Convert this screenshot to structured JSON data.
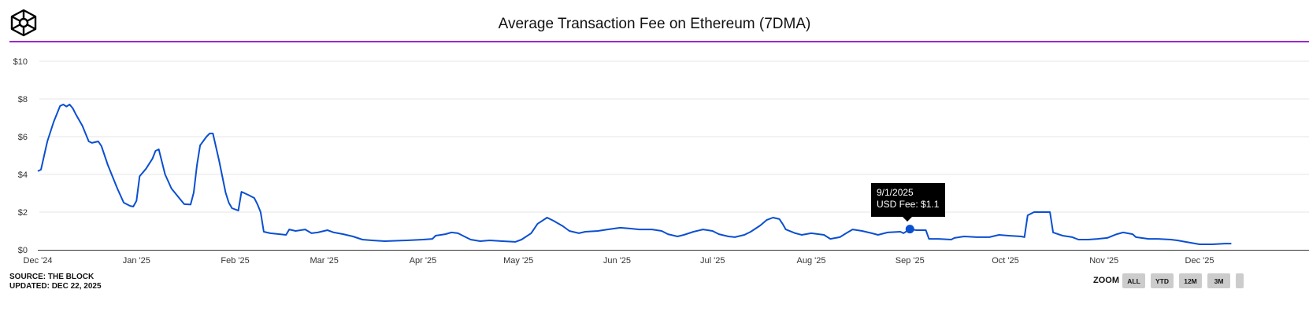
{
  "header": {
    "title": "Average Transaction Fee on Ethereum (7DMA)",
    "logo": "the-block-cube-logo"
  },
  "footer": {
    "source": "SOURCE: THE BLOCK",
    "updated": "UPDATED: DEC 22, 2025"
  },
  "zoom": {
    "label": "ZOOM",
    "buttons": [
      "ALL",
      "YTD",
      "12M",
      "3M"
    ]
  },
  "tooltip": {
    "date": "9/1/2025",
    "text": "USD Fee: $1.1"
  },
  "colors": {
    "line": "#0a4fd1",
    "accent": "#9c27d0",
    "grid": "#e6e6e6"
  },
  "chart_data": {
    "type": "line",
    "title": "Average Transaction Fee on Ethereum (7DMA)",
    "xlabel": "",
    "ylabel": "",
    "ylim": [
      0,
      10
    ],
    "grid": true,
    "yticks": [
      "$0",
      "$2",
      "$4",
      "$6",
      "$8",
      "$10"
    ],
    "xticks": [
      "Dec '24",
      "Jan '25",
      "Feb '25",
      "Mar '25",
      "Apr '25",
      "May '25",
      "Jun '25",
      "Jul '25",
      "Aug '25",
      "Sep '25",
      "Oct '25",
      "Nov '25",
      "Dec '25"
    ],
    "series": [
      {
        "name": "USD Fee",
        "points": [
          [
            "2024-12-01",
            4.17
          ],
          [
            "2024-12-02",
            4.25
          ],
          [
            "2024-12-04",
            5.75
          ],
          [
            "2024-12-06",
            6.79
          ],
          [
            "2024-12-08",
            7.63
          ],
          [
            "2024-12-09",
            7.71
          ],
          [
            "2024-12-10",
            7.6
          ],
          [
            "2024-12-11",
            7.71
          ],
          [
            "2024-12-12",
            7.5
          ],
          [
            "2024-12-13",
            7.17
          ],
          [
            "2024-12-15",
            6.58
          ],
          [
            "2024-12-17",
            5.75
          ],
          [
            "2024-12-18",
            5.67
          ],
          [
            "2024-12-20",
            5.75
          ],
          [
            "2024-12-21",
            5.5
          ],
          [
            "2024-12-23",
            4.5
          ],
          [
            "2024-12-26",
            3.25
          ],
          [
            "2024-12-28",
            2.5
          ],
          [
            "2024-12-30",
            2.33
          ],
          [
            "2024-12-31",
            2.29
          ],
          [
            "2025-01-01",
            2.6
          ],
          [
            "2025-01-02",
            3.9
          ],
          [
            "2025-01-04",
            4.3
          ],
          [
            "2025-01-06",
            4.83
          ],
          [
            "2025-01-07",
            5.25
          ],
          [
            "2025-01-08",
            5.33
          ],
          [
            "2025-01-10",
            4.0
          ],
          [
            "2025-01-12",
            3.25
          ],
          [
            "2025-01-15",
            2.63
          ],
          [
            "2025-01-16",
            2.42
          ],
          [
            "2025-01-18",
            2.4
          ],
          [
            "2025-01-19",
            3.04
          ],
          [
            "2025-01-20",
            4.5
          ],
          [
            "2025-01-21",
            5.54
          ],
          [
            "2025-01-23",
            6.0
          ],
          [
            "2025-01-24",
            6.17
          ],
          [
            "2025-01-25",
            6.17
          ],
          [
            "2025-01-27",
            4.71
          ],
          [
            "2025-01-29",
            3.04
          ],
          [
            "2025-01-30",
            2.5
          ],
          [
            "2025-01-31",
            2.21
          ],
          [
            "2025-02-02",
            2.08
          ],
          [
            "2025-02-03",
            3.08
          ],
          [
            "2025-02-05",
            2.92
          ],
          [
            "2025-02-07",
            2.75
          ],
          [
            "2025-02-08",
            2.42
          ],
          [
            "2025-02-09",
            2.0
          ],
          [
            "2025-02-10",
            0.96
          ],
          [
            "2025-02-12",
            0.88
          ],
          [
            "2025-02-15",
            0.83
          ],
          [
            "2025-02-17",
            0.79
          ],
          [
            "2025-02-18",
            1.08
          ],
          [
            "2025-02-20",
            1.0
          ],
          [
            "2025-02-23",
            1.08
          ],
          [
            "2025-02-25",
            0.88
          ],
          [
            "2025-02-27",
            0.92
          ],
          [
            "2025-03-02",
            1.04
          ],
          [
            "2025-03-04",
            0.92
          ],
          [
            "2025-03-07",
            0.83
          ],
          [
            "2025-03-10",
            0.71
          ],
          [
            "2025-03-13",
            0.54
          ],
          [
            "2025-03-16",
            0.5
          ],
          [
            "2025-03-20",
            0.46
          ],
          [
            "2025-03-27",
            0.5
          ],
          [
            "2025-04-01",
            0.54
          ],
          [
            "2025-04-04",
            0.58
          ],
          [
            "2025-04-05",
            0.75
          ],
          [
            "2025-04-08",
            0.83
          ],
          [
            "2025-04-10",
            0.92
          ],
          [
            "2025-04-12",
            0.88
          ],
          [
            "2025-04-14",
            0.71
          ],
          [
            "2025-04-16",
            0.54
          ],
          [
            "2025-04-19",
            0.46
          ],
          [
            "2025-04-22",
            0.5
          ],
          [
            "2025-04-26",
            0.46
          ],
          [
            "2025-04-30",
            0.42
          ],
          [
            "2025-05-02",
            0.54
          ],
          [
            "2025-05-05",
            0.88
          ],
          [
            "2025-05-07",
            1.38
          ],
          [
            "2025-05-10",
            1.71
          ],
          [
            "2025-05-12",
            1.54
          ],
          [
            "2025-05-15",
            1.25
          ],
          [
            "2025-05-17",
            1.0
          ],
          [
            "2025-05-20",
            0.88
          ],
          [
            "2025-05-22",
            0.96
          ],
          [
            "2025-05-26",
            1.0
          ],
          [
            "2025-05-29",
            1.08
          ],
          [
            "2025-06-02",
            1.17
          ],
          [
            "2025-06-05",
            1.13
          ],
          [
            "2025-06-08",
            1.08
          ],
          [
            "2025-06-12",
            1.08
          ],
          [
            "2025-06-15",
            1.0
          ],
          [
            "2025-06-17",
            0.83
          ],
          [
            "2025-06-20",
            0.71
          ],
          [
            "2025-06-22",
            0.79
          ],
          [
            "2025-06-25",
            0.96
          ],
          [
            "2025-06-28",
            1.08
          ],
          [
            "2025-07-01",
            1.0
          ],
          [
            "2025-07-03",
            0.83
          ],
          [
            "2025-07-06",
            0.71
          ],
          [
            "2025-07-08",
            0.67
          ],
          [
            "2025-07-11",
            0.79
          ],
          [
            "2025-07-13",
            0.96
          ],
          [
            "2025-07-16",
            1.29
          ],
          [
            "2025-07-18",
            1.58
          ],
          [
            "2025-07-20",
            1.71
          ],
          [
            "2025-07-22",
            1.63
          ],
          [
            "2025-07-23",
            1.38
          ],
          [
            "2025-07-24",
            1.08
          ],
          [
            "2025-07-27",
            0.88
          ],
          [
            "2025-07-29",
            0.79
          ],
          [
            "2025-08-01",
            0.88
          ],
          [
            "2025-08-05",
            0.79
          ],
          [
            "2025-08-07",
            0.58
          ],
          [
            "2025-08-10",
            0.67
          ],
          [
            "2025-08-12",
            0.88
          ],
          [
            "2025-08-14",
            1.08
          ],
          [
            "2025-08-17",
            1.0
          ],
          [
            "2025-08-20",
            0.88
          ],
          [
            "2025-08-22",
            0.79
          ],
          [
            "2025-08-25",
            0.92
          ],
          [
            "2025-08-29",
            0.96
          ],
          [
            "2025-08-30",
            0.88
          ],
          [
            "2025-09-01",
            1.1
          ],
          [
            "2025-09-03",
            1.04
          ],
          [
            "2025-09-06",
            1.04
          ],
          [
            "2025-09-07",
            0.58
          ],
          [
            "2025-09-10",
            0.58
          ],
          [
            "2025-09-14",
            0.54
          ],
          [
            "2025-09-15",
            0.63
          ],
          [
            "2025-09-18",
            0.71
          ],
          [
            "2025-09-22",
            0.67
          ],
          [
            "2025-09-26",
            0.67
          ],
          [
            "2025-09-29",
            0.79
          ],
          [
            "2025-10-02",
            0.75
          ],
          [
            "2025-10-06",
            0.71
          ],
          [
            "2025-10-07",
            0.67
          ],
          [
            "2025-10-08",
            1.83
          ],
          [
            "2025-10-10",
            2.0
          ],
          [
            "2025-10-12",
            2.0
          ],
          [
            "2025-10-15",
            2.0
          ],
          [
            "2025-10-16",
            0.92
          ],
          [
            "2025-10-19",
            0.75
          ],
          [
            "2025-10-22",
            0.67
          ],
          [
            "2025-10-24",
            0.54
          ],
          [
            "2025-10-27",
            0.54
          ],
          [
            "2025-10-30",
            0.58
          ],
          [
            "2025-11-02",
            0.63
          ],
          [
            "2025-11-05",
            0.83
          ],
          [
            "2025-11-07",
            0.92
          ],
          [
            "2025-11-10",
            0.83
          ],
          [
            "2025-11-11",
            0.67
          ],
          [
            "2025-11-15",
            0.58
          ],
          [
            "2025-11-18",
            0.58
          ],
          [
            "2025-11-22",
            0.54
          ],
          [
            "2025-11-24",
            0.5
          ],
          [
            "2025-11-28",
            0.38
          ],
          [
            "2025-12-01",
            0.29
          ],
          [
            "2025-12-05",
            0.29
          ],
          [
            "2025-12-09",
            0.33
          ],
          [
            "2025-12-11",
            0.33
          ]
        ]
      }
    ],
    "highlight": {
      "date": "2025-09-01",
      "value": 1.1
    }
  }
}
